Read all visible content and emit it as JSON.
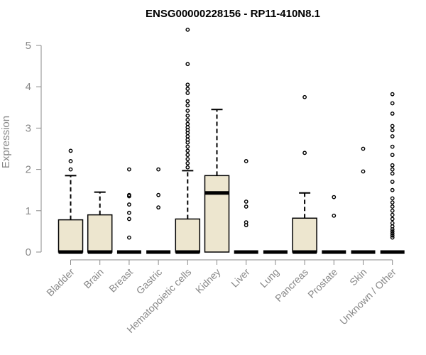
{
  "chart_data": {
    "type": "boxplot",
    "title": "ENSG00000228156 - RP11-410N8.1",
    "ylabel": "Expression",
    "ylim": [
      0,
      5.4
    ],
    "yticks": [
      0,
      1,
      2,
      3,
      4,
      5
    ],
    "grid": false,
    "colors": {
      "box_fill": "#ede6cf",
      "stroke": "#000000",
      "axis": "#888888"
    },
    "categories": [
      "Bladder",
      "Brain",
      "Breast",
      "Gastric",
      "Hematopoietic cells",
      "Kidney",
      "Liver",
      "Lung",
      "Pancreas",
      "Prostate",
      "Skin",
      "Unknown / Other"
    ],
    "boxes": [
      {
        "min": 0,
        "q1": 0,
        "median": 0,
        "q3": 0.78,
        "max": 1.85,
        "outliers": [
          2.0,
          2.2,
          2.45
        ]
      },
      {
        "min": 0,
        "q1": 0,
        "median": 0,
        "q3": 0.9,
        "max": 1.45,
        "outliers": []
      },
      {
        "min": 0,
        "q1": 0,
        "median": 0,
        "q3": 0,
        "max": 0,
        "outliers": [
          0.35,
          0.8,
          0.95,
          1.15,
          1.35,
          1.38,
          2.0
        ]
      },
      {
        "min": 0,
        "q1": 0,
        "median": 0,
        "q3": 0,
        "max": 0,
        "outliers": [
          1.08,
          1.38,
          2.0
        ]
      },
      {
        "min": 0,
        "q1": 0,
        "median": 0,
        "q3": 0.8,
        "max": 1.97,
        "outliers": [
          2.05,
          2.15,
          2.25,
          2.35,
          2.45,
          2.55,
          2.65,
          2.72,
          2.8,
          2.88,
          2.95,
          3.02,
          3.1,
          3.2,
          3.3,
          3.42,
          3.55,
          3.65,
          3.85,
          3.95,
          4.05,
          4.55,
          5.38
        ]
      },
      {
        "min": 0,
        "q1": 0,
        "median": 1.43,
        "q3": 1.85,
        "max": 3.45,
        "outliers": []
      },
      {
        "min": 0,
        "q1": 0,
        "median": 0,
        "q3": 0,
        "max": 0,
        "outliers": [
          0.65,
          0.72,
          1.1,
          1.22,
          2.2
        ]
      },
      {
        "min": 0,
        "q1": 0,
        "median": 0,
        "q3": 0,
        "max": 0,
        "outliers": []
      },
      {
        "min": 0,
        "q1": 0,
        "median": 0,
        "q3": 0.82,
        "max": 1.43,
        "outliers": [
          2.4,
          3.75
        ]
      },
      {
        "min": 0,
        "q1": 0,
        "median": 0,
        "q3": 0,
        "max": 0,
        "outliers": [
          0.88,
          1.33
        ]
      },
      {
        "min": 0,
        "q1": 0,
        "median": 0,
        "q3": 0,
        "max": 0,
        "outliers": [
          1.95,
          2.5
        ]
      },
      {
        "min": 0,
        "q1": 0,
        "median": 0,
        "q3": 0,
        "max": 0,
        "outliers": [
          0.35,
          0.4,
          0.45,
          0.5,
          0.55,
          0.62,
          0.7,
          0.8,
          0.9,
          1.0,
          1.1,
          1.2,
          1.3,
          1.5,
          1.7,
          1.9,
          2.0,
          2.1,
          2.35,
          2.55,
          2.8,
          2.95,
          3.05,
          3.35,
          3.6,
          3.82
        ]
      }
    ]
  }
}
